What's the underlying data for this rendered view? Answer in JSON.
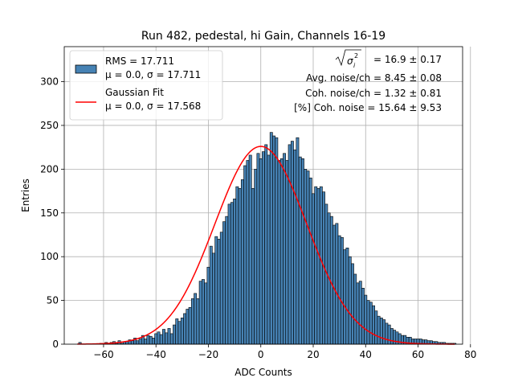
{
  "chart_data": {
    "type": "bar",
    "title": "Run 482, pedestal, hi Gain, Channels 16-19",
    "xlabel": "ADC Counts",
    "ylabel": "Entries",
    "xlim": [
      -75,
      77
    ],
    "ylim": [
      0,
      340
    ],
    "grid": true,
    "xticks": [
      -60,
      -40,
      -20,
      0,
      20,
      40,
      60,
      80
    ],
    "xtick_labels": [
      "−60",
      "−40",
      "−20",
      "0",
      "20",
      "40",
      "60",
      "80"
    ],
    "yticks": [
      0,
      50,
      100,
      150,
      200,
      250,
      300
    ],
    "ytick_labels": [
      "0",
      "50",
      "100",
      "150",
      "200",
      "250",
      "300"
    ],
    "bin_width": 1,
    "histogram": {
      "name": "RMS = 17.711",
      "stats_label": "μ = 0.0, σ = 17.711",
      "fill_color": "#4682b4",
      "edge_color": "#000000",
      "x_start": -69,
      "values": [
        2,
        0,
        0,
        0,
        0,
        0,
        0,
        0,
        1,
        0,
        2,
        1,
        2,
        3,
        1,
        4,
        1,
        3,
        3,
        5,
        4,
        7,
        4,
        6,
        10,
        6,
        10,
        9,
        7,
        12,
        14,
        11,
        17,
        13,
        18,
        12,
        22,
        29,
        26,
        30,
        35,
        40,
        42,
        52,
        58,
        52,
        72,
        74,
        70,
        88,
        112,
        104,
        123,
        120,
        128,
        140,
        146,
        160,
        162,
        166,
        180,
        178,
        188,
        204,
        210,
        216,
        178,
        200,
        218,
        212,
        220,
        228,
        216,
        242,
        238,
        236,
        210,
        212,
        218,
        210,
        228,
        232,
        222,
        236,
        214,
        212,
        200,
        198,
        190,
        172,
        180,
        178,
        180,
        174,
        160,
        150,
        146,
        136,
        138,
        124,
        122,
        108,
        110,
        100,
        92,
        80,
        70,
        72,
        64,
        56,
        50,
        48,
        44,
        38,
        32,
        30,
        28,
        24,
        22,
        18,
        16,
        14,
        12,
        10,
        10,
        8,
        8,
        6,
        6,
        6,
        6,
        5,
        5,
        4,
        4,
        3,
        3,
        2,
        2,
        2,
        1,
        1,
        1,
        1
      ]
    },
    "fit": {
      "name": "Gaussian Fit",
      "stats_label": "μ = 0.0, σ = 17.568",
      "color": "#ff0000",
      "mu": 0.0,
      "sigma": 17.568,
      "amplitude": 226,
      "x_range": [
        -70,
        74
      ]
    },
    "annotations": {
      "sigma_eq": "= 16.9 ± 0.17",
      "avg_noise": "Avg. noise/ch = 8.45 ± 0.08",
      "coh_noise": "Coh. noise/ch = 1.32 ± 0.81",
      "pct_coh": "[%] Coh. noise = 15.64 ± 9.53"
    }
  }
}
